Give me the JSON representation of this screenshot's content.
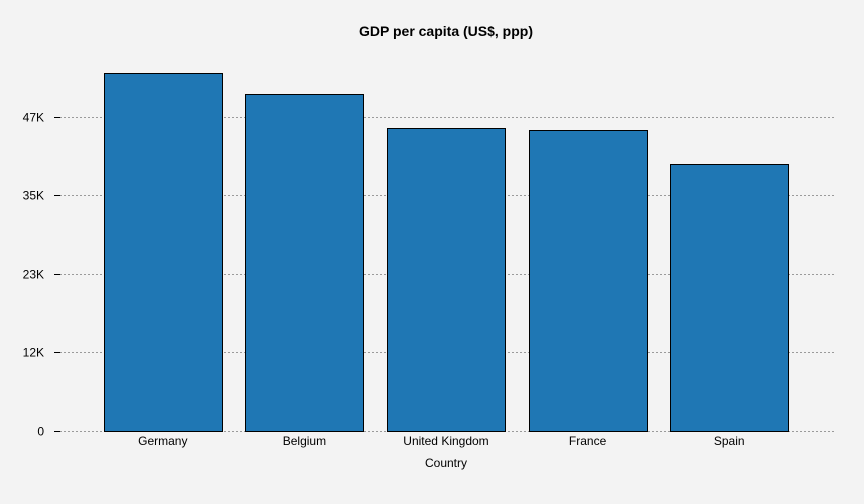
{
  "chart_data": {
    "type": "bar",
    "title": "GDP per capita (US$, ppp)",
    "xlabel": "Country",
    "ylabel": "",
    "categories": [
      "Germany",
      "Belgium",
      "United Kingdom",
      "France",
      "Spain"
    ],
    "values": [
      53600,
      50400,
      45400,
      45100,
      39900
    ],
    "ylim": [
      0,
      57000
    ],
    "yticks": [
      0,
      11750,
      23500,
      35250,
      47000
    ],
    "ytick_labels": [
      "0",
      "12K",
      "23K",
      "35K",
      "47K"
    ],
    "bar_color": "#1f77b4",
    "background_color": "#f3f3f3",
    "grid": true,
    "legend": false
  }
}
